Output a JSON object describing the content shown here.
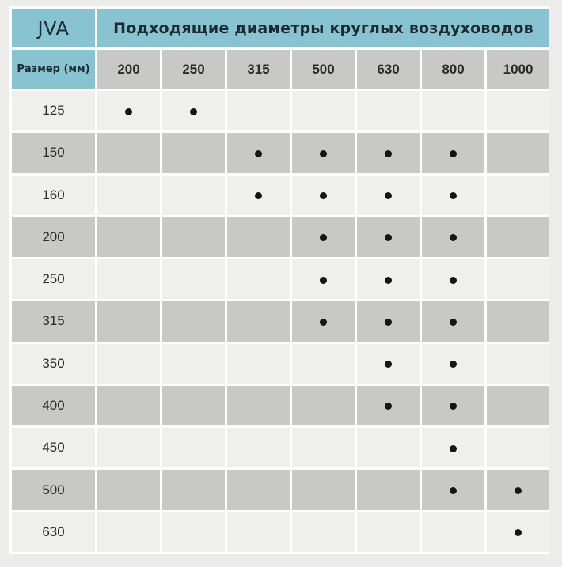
{
  "corner_label": "JVA",
  "title": "Подходящие диаметры круглых воздуховодов",
  "size_header": "Размер (мм)",
  "diameters": [
    "200",
    "250",
    "315",
    "500",
    "630",
    "800",
    "1000"
  ],
  "rows": [
    {
      "size": "125",
      "fits": [
        true,
        true,
        false,
        false,
        false,
        false,
        false
      ]
    },
    {
      "size": "150",
      "fits": [
        false,
        false,
        true,
        true,
        true,
        true,
        false
      ]
    },
    {
      "size": "160",
      "fits": [
        false,
        false,
        true,
        true,
        true,
        true,
        false
      ]
    },
    {
      "size": "200",
      "fits": [
        false,
        false,
        false,
        true,
        true,
        true,
        false
      ]
    },
    {
      "size": "250",
      "fits": [
        false,
        false,
        false,
        true,
        true,
        true,
        false
      ]
    },
    {
      "size": "315",
      "fits": [
        false,
        false,
        false,
        true,
        true,
        true,
        false
      ]
    },
    {
      "size": "350",
      "fits": [
        false,
        false,
        false,
        false,
        true,
        true,
        false
      ]
    },
    {
      "size": "400",
      "fits": [
        false,
        false,
        false,
        false,
        true,
        true,
        false
      ]
    },
    {
      "size": "450",
      "fits": [
        false,
        false,
        false,
        false,
        false,
        true,
        false
      ]
    },
    {
      "size": "500",
      "fits": [
        false,
        false,
        false,
        false,
        false,
        true,
        true
      ]
    },
    {
      "size": "630",
      "fits": [
        false,
        false,
        false,
        false,
        false,
        false,
        true
      ]
    }
  ],
  "colors": {
    "header_accent": "#88c3d1",
    "row_light": "#efefee",
    "row_dark": "#c8c8c7",
    "dot": "#17150f"
  }
}
